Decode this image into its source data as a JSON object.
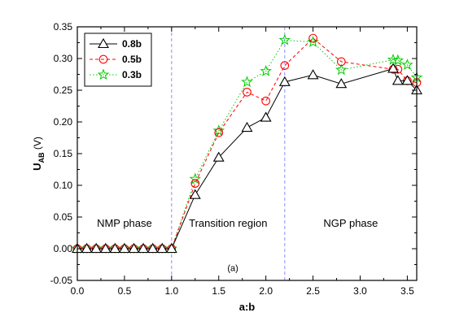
{
  "chart_data": {
    "type": "line",
    "xlabel": "a:b",
    "ylabel_main": "U",
    "ylabel_sub": "AB",
    "ylabel_unit": " (V)",
    "xlim": [
      0.0,
      3.6
    ],
    "ylim": [
      -0.05,
      0.35
    ],
    "xticks": [
      0.0,
      0.5,
      1.0,
      1.5,
      2.0,
      2.5,
      3.0,
      3.5
    ],
    "xtick_labels": [
      "0.0",
      "0.5",
      "1.0",
      "1.5",
      "2.0",
      "2.5",
      "3.0",
      "3.5"
    ],
    "yticks": [
      -0.05,
      0.0,
      0.05,
      0.1,
      0.15,
      0.2,
      0.25,
      0.3,
      0.35
    ],
    "ytick_labels": [
      "-0.05",
      "0.00",
      "0.05",
      "0.10",
      "0.15",
      "0.20",
      "0.25",
      "0.30",
      "0.35"
    ],
    "vlines": [
      1.0,
      2.2
    ],
    "regions": [
      {
        "label": "NMP phase",
        "x": 0.5,
        "y": 0.04
      },
      {
        "label": "Transition region",
        "x": 1.6,
        "y": 0.04
      },
      {
        "label": "NGP phase",
        "x": 2.9,
        "y": 0.04
      }
    ],
    "panel_label": "(a)",
    "legend_position": "top-left",
    "series": [
      {
        "name": "0.8b",
        "color": "#000000",
        "marker": "triangle",
        "line": "solid",
        "x": [
          0.0,
          0.1,
          0.2,
          0.3,
          0.4,
          0.5,
          0.6,
          0.7,
          0.8,
          0.9,
          1.0,
          1.25,
          1.5,
          1.8,
          2.0,
          2.2,
          2.5,
          2.8,
          3.35,
          3.4,
          3.5,
          3.6
        ],
        "y": [
          0.0,
          0.0,
          0.0,
          0.0,
          0.0,
          0.0,
          0.0,
          0.0,
          0.0,
          0.0,
          0.0,
          0.085,
          0.144,
          0.191,
          0.207,
          0.263,
          0.274,
          0.26,
          0.284,
          0.265,
          0.265,
          0.25
        ]
      },
      {
        "name": "0.5b",
        "color": "#ff0000",
        "marker": "circle",
        "line": "dashed",
        "x": [
          0.0,
          0.1,
          0.2,
          0.3,
          0.4,
          0.5,
          0.6,
          0.7,
          0.8,
          0.9,
          1.0,
          1.25,
          1.5,
          1.8,
          2.0,
          2.2,
          2.5,
          2.8,
          3.35,
          3.4,
          3.5,
          3.6
        ],
        "y": [
          0.0,
          0.0,
          0.0,
          0.0,
          0.0,
          0.0,
          0.0,
          0.0,
          0.0,
          0.0,
          0.0,
          0.103,
          0.183,
          0.247,
          0.233,
          0.289,
          0.332,
          0.295,
          0.283,
          0.283,
          0.265,
          0.262
        ]
      },
      {
        "name": "0.3b",
        "color": "#00cc00",
        "marker": "star",
        "line": "dotted",
        "x": [
          0.0,
          0.1,
          0.2,
          0.3,
          0.4,
          0.5,
          0.6,
          0.7,
          0.8,
          0.9,
          1.0,
          1.25,
          1.5,
          1.8,
          2.0,
          2.2,
          2.5,
          2.8,
          3.35,
          3.4,
          3.5,
          3.6
        ],
        "y": [
          0.0,
          0.0,
          0.0,
          0.0,
          0.0,
          0.0,
          0.0,
          0.0,
          0.0,
          0.0,
          0.0,
          0.11,
          0.186,
          0.263,
          0.28,
          0.329,
          0.326,
          0.282,
          0.298,
          0.297,
          0.29,
          0.27
        ]
      }
    ]
  }
}
